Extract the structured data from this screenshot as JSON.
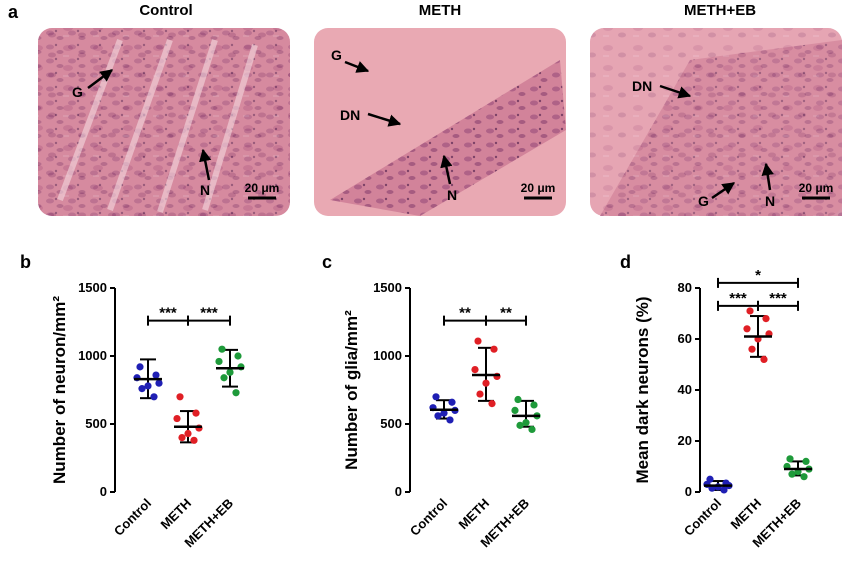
{
  "panel_a": {
    "letter": "a",
    "photos": [
      {
        "title": "Control",
        "labels": [
          {
            "text": "G",
            "arrow": "G-arrow"
          },
          {
            "text": "N",
            "arrow": "N-arrow"
          }
        ],
        "scalebar": "20 μm"
      },
      {
        "title": "METH",
        "labels": [
          {
            "text": "G"
          },
          {
            "text": "DN"
          },
          {
            "text": "N"
          }
        ],
        "scalebar": "20 μm"
      },
      {
        "title": "METH+EB",
        "labels": [
          {
            "text": "DN"
          },
          {
            "text": "G"
          },
          {
            "text": "N"
          }
        ],
        "scalebar": "20 μm"
      }
    ]
  },
  "colors": {
    "control": "#1f1fb4",
    "meth": "#e01f25",
    "meth_eb": "#1e9a3a",
    "tissue": "#c9708a"
  },
  "chart_data": [
    {
      "letter": "b",
      "type": "scatter",
      "ylabel": "Number of neuron/mm²",
      "ylim": [
        0,
        1500
      ],
      "yticks": [
        0,
        500,
        1000,
        1500
      ],
      "categories": [
        "Control",
        "METH",
        "METH+EB"
      ],
      "series": [
        {
          "points": [
            920,
            860,
            840,
            800,
            780,
            760,
            700
          ],
          "mean": 830,
          "sd_low": 690,
          "sd_high": 975
        },
        {
          "points": [
            700,
            580,
            540,
            470,
            430,
            400,
            380
          ],
          "mean": 480,
          "sd_low": 365,
          "sd_high": 595
        },
        {
          "points": [
            1050,
            1000,
            960,
            920,
            880,
            840,
            730
          ],
          "mean": 910,
          "sd_low": 775,
          "sd_high": 1045
        }
      ],
      "significance": [
        {
          "from": 0,
          "to": 1,
          "label": "***",
          "y": 1260
        },
        {
          "from": 1,
          "to": 2,
          "label": "***",
          "y": 1260
        }
      ]
    },
    {
      "letter": "c",
      "type": "scatter",
      "ylabel": "Number of glia/mm²",
      "ylim": [
        0,
        1500
      ],
      "yticks": [
        0,
        500,
        1000,
        1500
      ],
      "categories": [
        "Control",
        "METH",
        "METH+EB"
      ],
      "series": [
        {
          "points": [
            700,
            660,
            620,
            600,
            580,
            560,
            530
          ],
          "mean": 605,
          "sd_low": 540,
          "sd_high": 675
        },
        {
          "points": [
            1110,
            1050,
            900,
            850,
            800,
            720,
            650
          ],
          "mean": 860,
          "sd_low": 670,
          "sd_high": 1060
        },
        {
          "points": [
            680,
            640,
            600,
            560,
            510,
            490,
            460
          ],
          "mean": 560,
          "sd_low": 480,
          "sd_high": 670
        }
      ],
      "significance": [
        {
          "from": 0,
          "to": 1,
          "label": "**",
          "y": 1260
        },
        {
          "from": 1,
          "to": 2,
          "label": "**",
          "y": 1260
        }
      ]
    },
    {
      "letter": "d",
      "type": "scatter",
      "ylabel": "Mean dark neurons (%)",
      "ylim": [
        0,
        80
      ],
      "yticks": [
        0,
        20,
        40,
        60,
        80
      ],
      "categories": [
        "Control",
        "METH",
        "METH+EB"
      ],
      "series": [
        {
          "points": [
            5,
            3.5,
            3,
            2.5,
            2,
            1.5,
            0.8
          ],
          "mean": 2.5,
          "sd_low": 0.8,
          "sd_high": 4.3
        },
        {
          "points": [
            71,
            68,
            64,
            62,
            60,
            56,
            52
          ],
          "mean": 61,
          "sd_low": 53,
          "sd_high": 69
        },
        {
          "points": [
            13,
            12,
            10,
            9,
            8,
            7,
            6
          ],
          "mean": 9,
          "sd_low": 6.5,
          "sd_high": 12
        }
      ],
      "significance": [
        {
          "from": 0,
          "to": 2,
          "label": "*",
          "y": 82
        },
        {
          "from": 0,
          "to": 1,
          "label": "***",
          "y": 73
        },
        {
          "from": 1,
          "to": 2,
          "label": "***",
          "y": 73
        }
      ]
    }
  ]
}
